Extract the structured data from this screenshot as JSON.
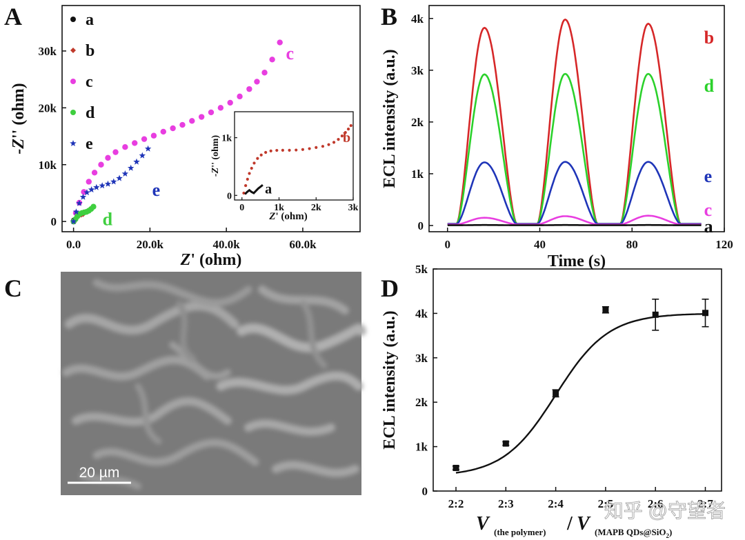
{
  "panels": {
    "A": {
      "label": "A"
    },
    "B": {
      "label": "B"
    },
    "C": {
      "label": "C",
      "scalebar_text": "20 µm"
    },
    "D": {
      "label": "D"
    }
  },
  "watermark": "知乎 @守望者",
  "chart_data": [
    {
      "id": "A",
      "type": "scatter",
      "xlabel_prefix": "Z",
      "xlabel_suffix": "' (ohm)",
      "ylabel_prefix": "-Z",
      "ylabel_suffix": "'' (ohm)",
      "xlim": [
        -3000,
        75000
      ],
      "ylim": [
        -1800,
        38000
      ],
      "xticks": [
        0,
        20000,
        40000,
        60000
      ],
      "xtick_labels": [
        "0.0",
        "20.0k",
        "40.0k",
        "60.0k"
      ],
      "yticks": [
        0,
        10000,
        20000,
        30000
      ],
      "ytick_labels": [
        "0",
        "10k",
        "20k",
        "30k"
      ],
      "legend_position": "top-left",
      "series": [
        {
          "name": "a",
          "color": "#111111",
          "marker": "circle",
          "x": [
            20,
            40,
            60,
            80,
            100,
            120
          ],
          "y": [
            0,
            40,
            80,
            120,
            160,
            200
          ]
        },
        {
          "name": "b",
          "color": "#c0392b",
          "marker": "diamond",
          "x": [
            0,
            500,
            1000,
            1500,
            2000,
            2500
          ],
          "y": [
            0,
            400,
            900,
            1100,
            1200,
            1300
          ]
        },
        {
          "name": "c",
          "color": "#e83ee0",
          "marker": "circle",
          "x": [
            0,
            600,
            1500,
            2700,
            4000,
            5500,
            7200,
            9000,
            11000,
            13500,
            16000,
            18500,
            21000,
            23500,
            26000,
            28500,
            31000,
            33500,
            36000,
            38500,
            41000,
            43500,
            46000,
            48000,
            50000,
            52000,
            54000
          ],
          "y": [
            0,
            1500,
            3300,
            5200,
            7000,
            8600,
            10000,
            11200,
            12200,
            13100,
            13800,
            14500,
            15100,
            15800,
            16400,
            17000,
            17700,
            18400,
            19200,
            20000,
            20900,
            22000,
            23300,
            24600,
            26200,
            28500,
            31500
          ],
          "annotation": "c"
        },
        {
          "name": "d",
          "color": "#3fcf3f",
          "marker": "circle",
          "x": [
            0,
            500,
            1000,
            1600,
            2200,
            2800,
            3400,
            4000,
            4600,
            5200
          ],
          "y": [
            0,
            400,
            900,
            1300,
            1500,
            1600,
            1700,
            1900,
            2200,
            2600
          ],
          "annotation": "d"
        },
        {
          "name": "e",
          "color": "#1f35b8",
          "marker": "star",
          "x": [
            0,
            700,
            1500,
            2500,
            3500,
            4700,
            6000,
            7500,
            9000,
            10500,
            12000,
            13500,
            15000,
            16500,
            18000,
            19500
          ],
          "y": [
            0,
            1700,
            3200,
            4300,
            5100,
            5600,
            6000,
            6300,
            6600,
            7000,
            7600,
            8400,
            9400,
            10500,
            11600,
            12800
          ],
          "annotation": "e"
        }
      ],
      "inset": {
        "xlabel_prefix": "Z",
        "xlabel_suffix": "' (ohm)",
        "ylabel_prefix": "-Z",
        "ylabel_suffix": "'' (ohm)",
        "xlim": [
          -200,
          3000
        ],
        "ylim": [
          -80,
          1450
        ],
        "xticks": [
          0,
          1000,
          2000,
          3000
        ],
        "xtick_labels": [
          "0",
          "1k",
          "2k",
          "3k"
        ],
        "yticks": [
          0,
          1000
        ],
        "ytick_labels": [
          "0",
          "1k"
        ],
        "series": [
          {
            "name": "b",
            "color": "#c0392b",
            "x": [
              50,
              100,
              150,
              200,
              260,
              330,
              420,
              520,
              640,
              780,
              940,
              1100,
              1280,
              1460,
              1640,
              1820,
              2000,
              2180,
              2340,
              2480,
              2600,
              2700,
              2790,
              2870,
              2940
            ],
            "y": [
              40,
              170,
              280,
              380,
              470,
              560,
              640,
              700,
              745,
              770,
              780,
              782,
              782,
              786,
              795,
              810,
              830,
              850,
              880,
              920,
              970,
              1030,
              1090,
              1150,
              1210
            ],
            "annotation": "b"
          },
          {
            "name": "a",
            "color": "#111111",
            "x": [
              80,
              140,
              200,
              260,
              320,
              380,
              440,
              500,
              560
            ],
            "y": [
              20,
              60,
              90,
              60,
              40,
              80,
              120,
              150,
              180
            ],
            "annotation": "a"
          }
        ]
      }
    },
    {
      "id": "B",
      "type": "line",
      "xlabel": "Time (s)",
      "ylabel": "ECL intensity (a.u.)",
      "xlim": [
        -8,
        120
      ],
      "ylim": [
        -120,
        4250
      ],
      "xticks": [
        0,
        40,
        80,
        120
      ],
      "xtick_labels": [
        "0",
        "40",
        "80",
        "120"
      ],
      "yticks": [
        0,
        1000,
        2000,
        3000,
        4000
      ],
      "ytick_labels": [
        "0",
        "1k",
        "2k",
        "3k",
        "4k"
      ],
      "pulse_centers": [
        16,
        51,
        87
      ],
      "series": [
        {
          "name": "b",
          "color": "#d62728",
          "baseline": 30,
          "peaks": [
            3820,
            3980,
            3900
          ],
          "annotation": "b"
        },
        {
          "name": "d",
          "color": "#2bd12b",
          "baseline": 30,
          "peaks": [
            2920,
            2930,
            2930
          ],
          "annotation": "d"
        },
        {
          "name": "e",
          "color": "#1f35b8",
          "baseline": 30,
          "peaks": [
            1220,
            1230,
            1230
          ],
          "annotation": "e"
        },
        {
          "name": "c",
          "color": "#e83ee0",
          "baseline": 20,
          "peaks": [
            150,
            180,
            190
          ],
          "annotation": "c"
        },
        {
          "name": "a",
          "color": "#111111",
          "baseline": 5,
          "peaks": [
            10,
            10,
            10
          ],
          "annotation": "a"
        }
      ]
    },
    {
      "id": "D",
      "type": "scatter",
      "xlabel_v1": "V",
      "xlabel_sub1": "(the polymer)",
      "xlabel_slash": "/",
      "xlabel_v2": "V",
      "xlabel_sub2": "(MAPB QDs@SiO",
      "xlabel_sub2_num": "2",
      "xlabel_sub2_end": ")",
      "ylabel": "ECL intensity (a.u.)",
      "ylim": [
        0,
        5000
      ],
      "yticks": [
        0,
        1000,
        2000,
        3000,
        4000,
        5000
      ],
      "ytick_labels": [
        "0",
        "1k",
        "2k",
        "3k",
        "4k",
        "5k"
      ],
      "categories": [
        "2:2",
        "2:3",
        "2:4",
        "2:5",
        "2:6",
        "2:7"
      ],
      "values": [
        520,
        1070,
        2200,
        4080,
        3970,
        4010
      ],
      "errors": [
        40,
        40,
        80,
        70,
        350,
        310
      ],
      "fit_curve": "sigmoid",
      "color": "#111111"
    }
  ]
}
